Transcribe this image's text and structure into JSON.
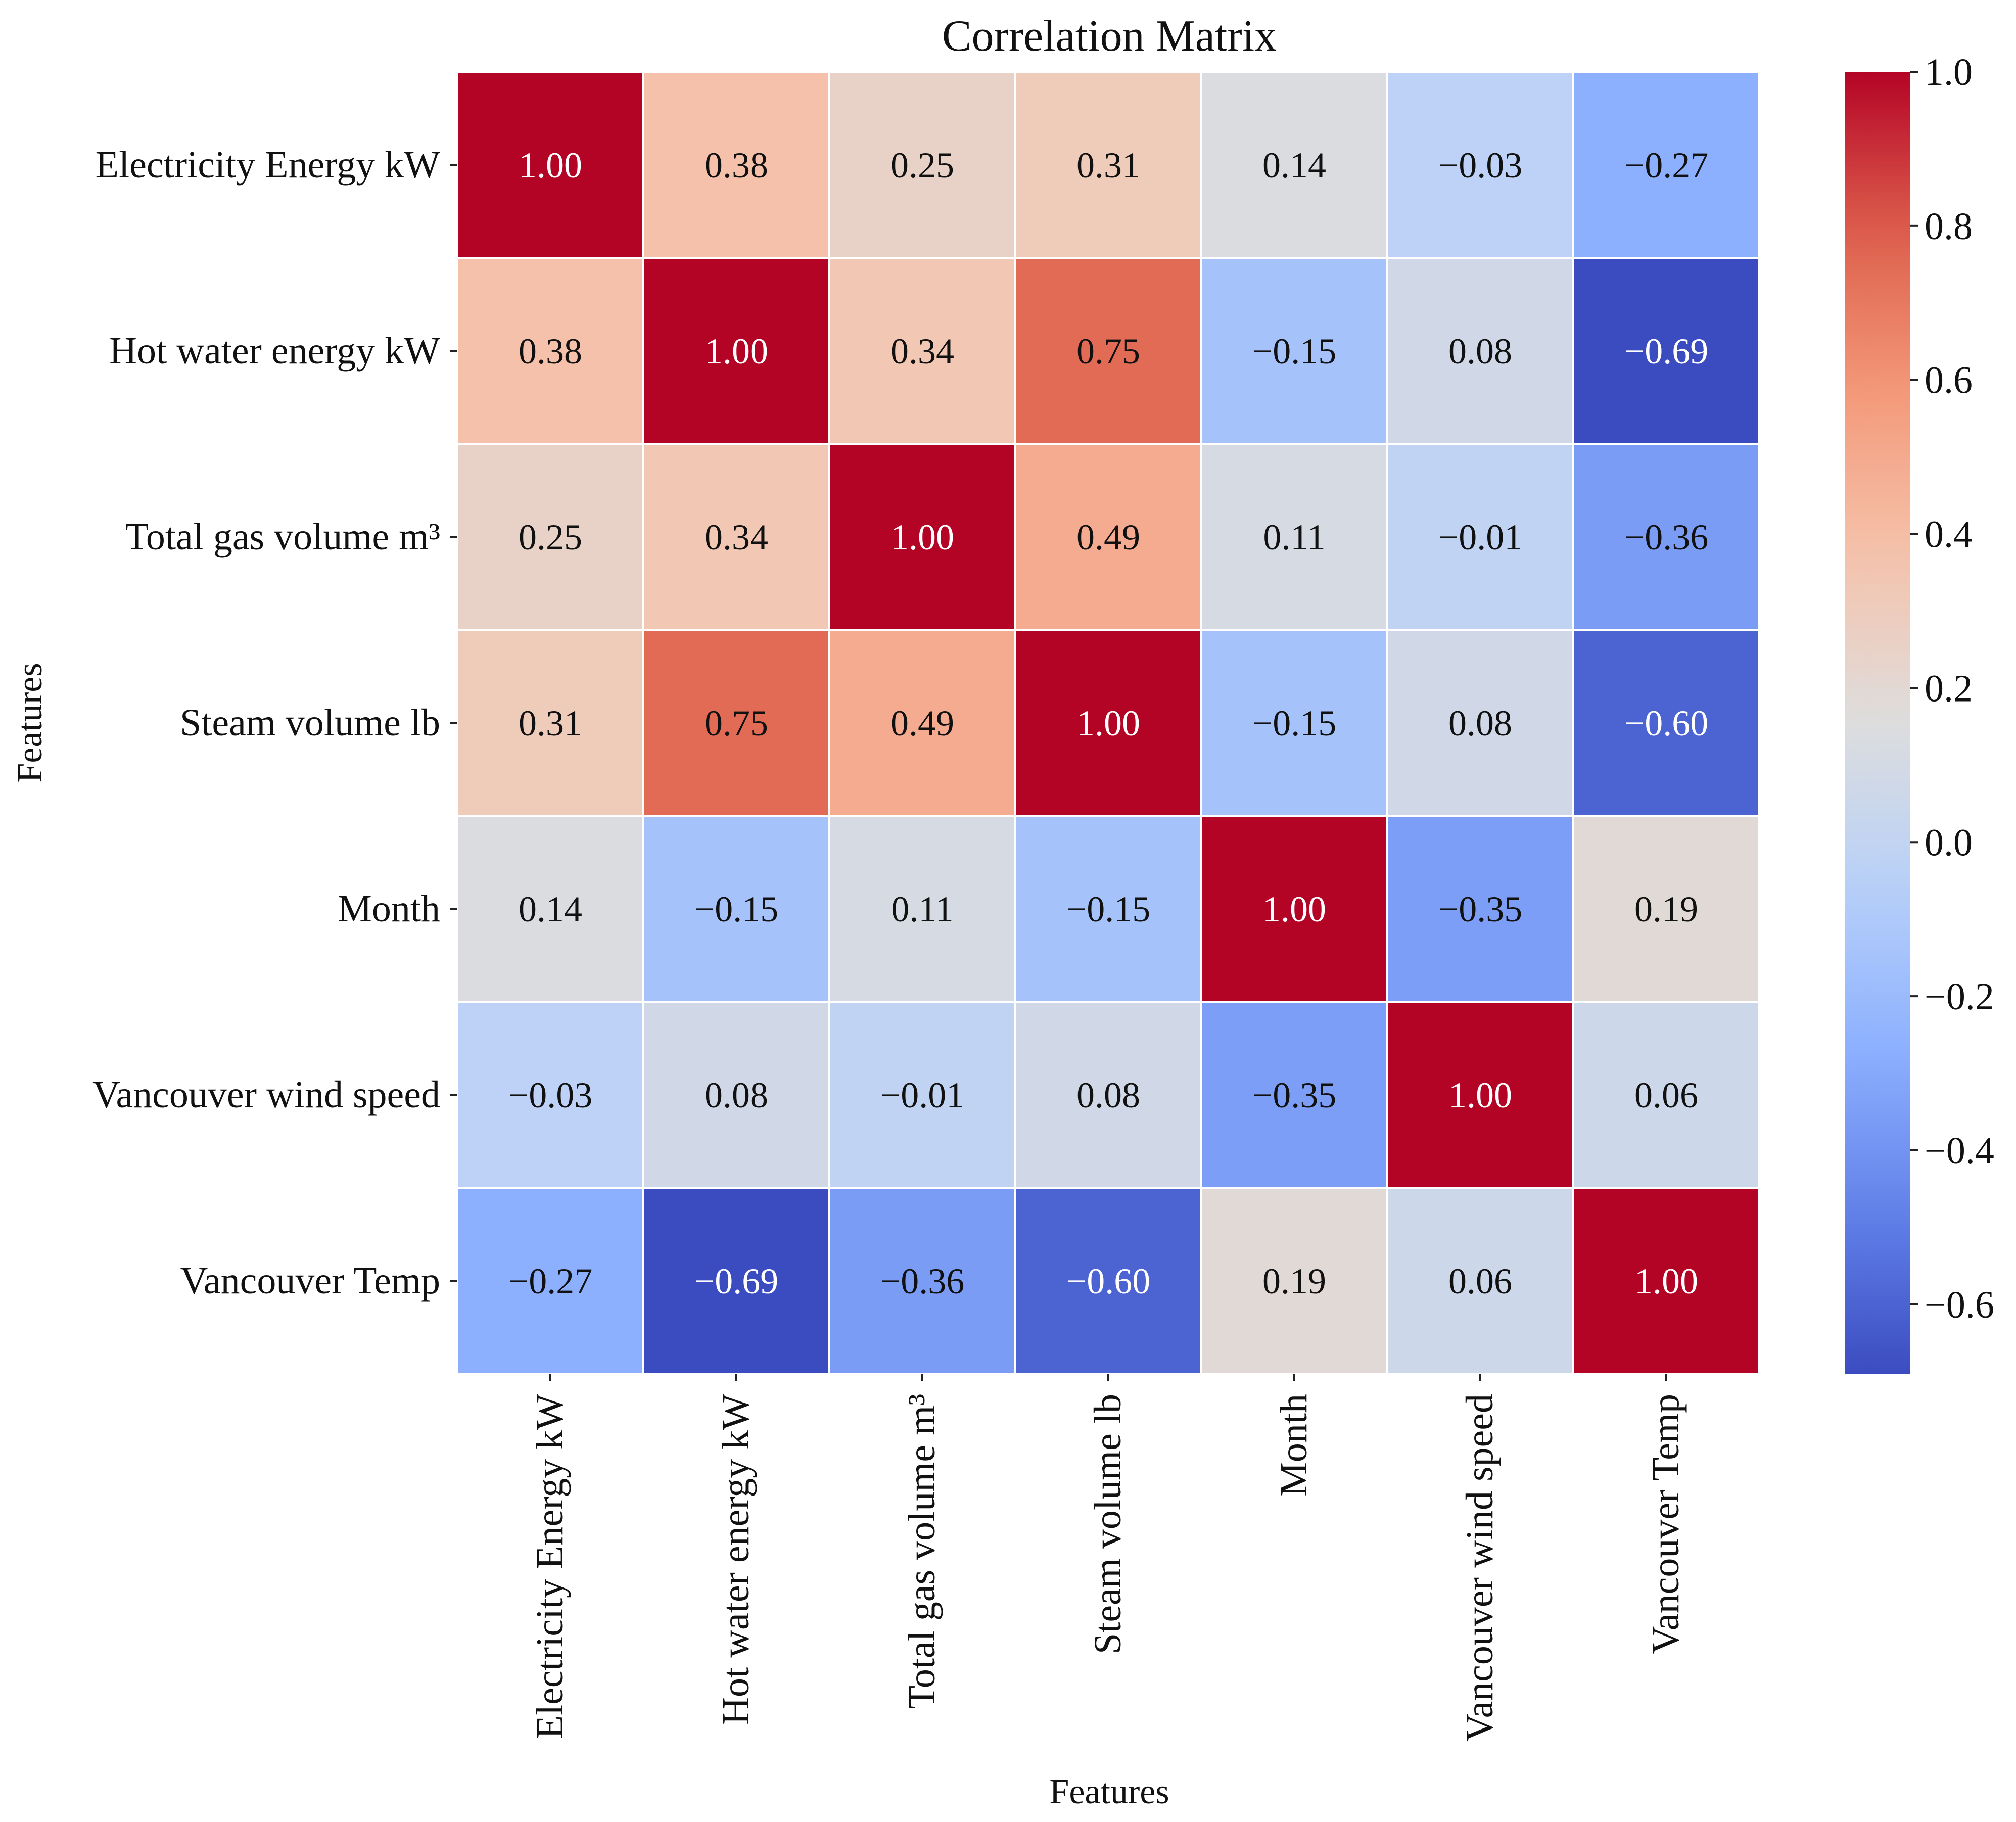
{
  "chart_data": {
    "type": "heatmap",
    "title": "Correlation Matrix",
    "xlabel": "Features",
    "ylabel": "Features",
    "labels": [
      "Electricity Energy kW",
      "Hot water energy kW",
      "Total gas volume m³",
      "Steam volume lb",
      "Month",
      "Vancouver wind speed",
      "Vancouver Temp"
    ],
    "values": [
      [
        1.0,
        0.38,
        0.25,
        0.31,
        0.14,
        -0.03,
        -0.27
      ],
      [
        0.38,
        1.0,
        0.34,
        0.75,
        -0.15,
        0.08,
        -0.69
      ],
      [
        0.25,
        0.34,
        1.0,
        0.49,
        0.11,
        -0.01,
        -0.36
      ],
      [
        0.31,
        0.75,
        0.49,
        1.0,
        -0.15,
        0.08,
        -0.6
      ],
      [
        0.14,
        -0.15,
        0.11,
        -0.15,
        1.0,
        -0.35,
        0.19
      ],
      [
        -0.03,
        0.08,
        -0.01,
        0.08,
        -0.35,
        1.0,
        0.06
      ],
      [
        -0.27,
        -0.69,
        -0.36,
        -0.6,
        0.19,
        0.06,
        1.0
      ]
    ],
    "cell_labels": [
      [
        "1.00",
        "0.38",
        "0.25",
        "0.31",
        "0.14",
        "−0.03",
        "−0.27"
      ],
      [
        "0.38",
        "1.00",
        "0.34",
        "0.75",
        "−0.15",
        "0.08",
        "−0.69"
      ],
      [
        "0.25",
        "0.34",
        "1.00",
        "0.49",
        "0.11",
        "−0.01",
        "−0.36"
      ],
      [
        "0.31",
        "0.75",
        "0.49",
        "1.00",
        "−0.15",
        "0.08",
        "−0.60"
      ],
      [
        "0.14",
        "−0.15",
        "0.11",
        "−0.15",
        "1.00",
        "−0.35",
        "0.19"
      ],
      [
        "−0.03",
        "0.08",
        "−0.01",
        "0.08",
        "−0.35",
        "1.00",
        "0.06"
      ],
      [
        "−0.27",
        "−0.69",
        "−0.36",
        "−0.60",
        "0.19",
        "0.06",
        "1.00"
      ]
    ],
    "colormap": "coolwarm",
    "colorbar": {
      "vmin": -0.69,
      "vmax": 1.0,
      "ticks": [
        1.0,
        0.8,
        0.6,
        0.4,
        0.2,
        0.0,
        -0.2,
        -0.4,
        -0.6
      ],
      "tick_labels": [
        "1.0",
        "0.8",
        "0.6",
        "0.4",
        "0.2",
        "0.0",
        "−0.2",
        "−0.4",
        "−0.6"
      ]
    },
    "colors": {
      "cold": "#3b4cc0",
      "neutral": "#dddddd",
      "hot": "#b40426",
      "text_dark": "#111111",
      "text_light": "#ffffff",
      "grid": "#ffffff"
    }
  }
}
